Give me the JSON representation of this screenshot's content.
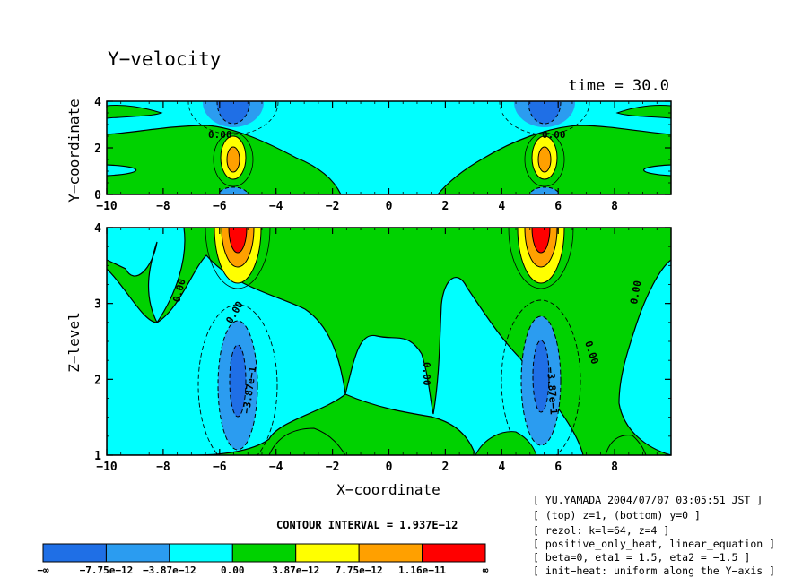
{
  "chart_data": {
    "type": "heatmap",
    "title": "Y−velocity",
    "time_label": "time = 30.0",
    "contour_interval_label": "CONTOUR INTERVAL = 1.937E−12",
    "colors": {
      "level_neg3": "#1f6fe6",
      "level_neg2": "#2b9cf0",
      "level_neg1": "#00ffff",
      "level_0": "#00d200",
      "level_pos1": "#ffff00",
      "level_pos2": "#ffa000",
      "level_pos3": "#ff0000"
    },
    "top_panel": {
      "xlabel": "X−coordinate",
      "ylabel": "Y−coordinate",
      "xlim": [
        -10,
        10
      ],
      "ylim": [
        0,
        4
      ],
      "xticks": [
        "−10",
        "−8",
        "−6",
        "−4",
        "−2",
        "0",
        "2",
        "4",
        "6",
        "8"
      ],
      "yticks": [
        "0",
        "2",
        "4"
      ],
      "contour_labels": [
        "0.00",
        "0.00"
      ]
    },
    "bottom_panel": {
      "xlabel": "X−coordinate",
      "ylabel": "Z−level",
      "xlim": [
        -10,
        10
      ],
      "ylim": [
        1,
        4
      ],
      "xticks": [
        "−10",
        "−8",
        "−6",
        "−4",
        "−2",
        "0",
        "2",
        "4",
        "6",
        "8"
      ],
      "yticks": [
        "1",
        "2",
        "3",
        "4"
      ],
      "contour_labels": [
        "0.00",
        "0.00",
        "0.00",
        "0.00",
        "0.00",
        "−3.87e−1",
        "−3.87e−1"
      ]
    },
    "legend": {
      "labels": [
        "−∞",
        "−7.75e−12",
        "−3.87e−12",
        "0.00",
        "3.87e−12",
        "7.75e−12",
        "1.16e−11",
        "∞"
      ]
    },
    "info_lines": [
      "[ YU.YAMADA 2004/07/07 03:05:51 JST ]",
      "[ (top) z=1, (bottom) y=0 ]",
      "[ rezol: k=l=64, z=4 ]",
      "[ positive_only_heat, linear_equation ]",
      "[ beta=0, eta1 = 1.5, eta2 = −1.5 ]",
      "[ init−heat: uniform along the Y−axis ]"
    ]
  }
}
